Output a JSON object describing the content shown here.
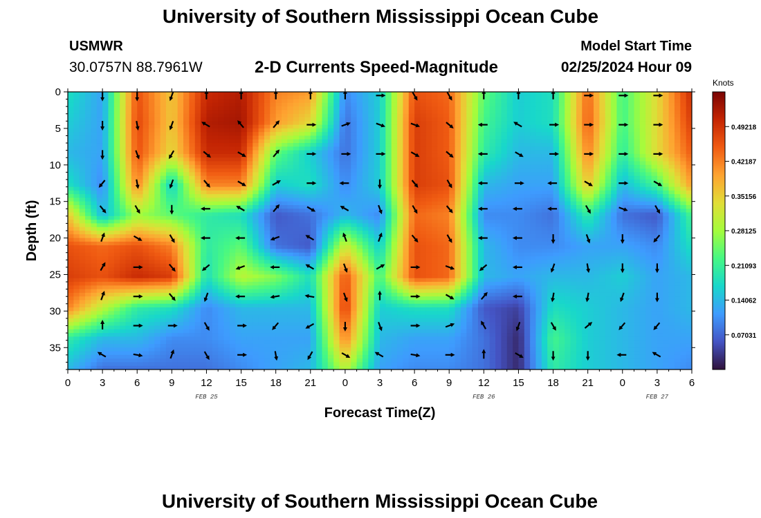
{
  "page": {
    "title": "University of Southern Mississippi Ocean Cube",
    "station": "USMWR",
    "location": "30.0757N  88.7961W",
    "subtitle": "2-D Currents Speed-Magnitude",
    "model_start_label": "Model Start Time",
    "model_start_time": "02/25/2024 Hour 09",
    "second_title": "University of Southern Mississippi Ocean Cube"
  },
  "chart_data": {
    "type": "heatmap",
    "xlabel": "Forecast Time(Z)",
    "ylabel": "Depth (ft)",
    "x_hours": [
      0,
      54
    ],
    "x_tick_labels": [
      "0",
      "3",
      "6",
      "9",
      "12",
      "15",
      "18",
      "21",
      "0",
      "3",
      "6",
      "9",
      "12",
      "15",
      "18",
      "21",
      "0",
      "3",
      "6"
    ],
    "date_labels": [
      {
        "label": "FEB 25",
        "hour": 12
      },
      {
        "label": "FEB 26",
        "hour": 36
      },
      {
        "label": "FEB 27",
        "hour": 51
      }
    ],
    "y_ticks": [
      0,
      5,
      10,
      15,
      20,
      25,
      30,
      35
    ],
    "ylim": [
      0,
      38
    ],
    "colorbar": {
      "unit": "Knots",
      "ticks": [
        "0.07031",
        "0.14062",
        "0.21093",
        "0.28125",
        "0.35156",
        "0.42187",
        "0.49218"
      ],
      "range": [
        0.0,
        0.5625
      ],
      "colors": [
        "#30123b",
        "#4454c4",
        "#3e9bfe",
        "#18d7cb",
        "#46f884",
        "#a4fc3c",
        "#e1dd37",
        "#fea331",
        "#f05b12",
        "#c42503",
        "#7a0403"
      ]
    },
    "speed_grid_note": "knots at sampled times (columns, hours 0-54 step 3) and depths (rows, ft 0-38 step ~4.2)",
    "depths": [
      0,
      4.2,
      8.4,
      12.7,
      16.9,
      21.1,
      25.3,
      29.6,
      33.8,
      38
    ],
    "times": [
      0,
      3,
      6,
      9,
      12,
      15,
      18,
      21,
      24,
      27,
      30,
      33,
      36,
      39,
      42,
      45,
      48,
      51,
      54
    ],
    "speed": [
      [
        0.18,
        0.12,
        0.46,
        0.36,
        0.5,
        0.52,
        0.42,
        0.4,
        0.1,
        0.16,
        0.46,
        0.44,
        0.24,
        0.16,
        0.18,
        0.44,
        0.22,
        0.34,
        0.5
      ],
      [
        0.16,
        0.12,
        0.47,
        0.36,
        0.52,
        0.53,
        0.4,
        0.34,
        0.08,
        0.16,
        0.48,
        0.45,
        0.22,
        0.16,
        0.18,
        0.45,
        0.22,
        0.34,
        0.48
      ],
      [
        0.14,
        0.12,
        0.46,
        0.34,
        0.5,
        0.5,
        0.24,
        0.16,
        0.08,
        0.16,
        0.48,
        0.45,
        0.2,
        0.14,
        0.14,
        0.42,
        0.2,
        0.34,
        0.45
      ],
      [
        0.18,
        0.1,
        0.42,
        0.16,
        0.42,
        0.42,
        0.16,
        0.18,
        0.1,
        0.16,
        0.48,
        0.46,
        0.14,
        0.12,
        0.12,
        0.36,
        0.14,
        0.22,
        0.4
      ],
      [
        0.36,
        0.14,
        0.28,
        0.24,
        0.2,
        0.18,
        0.06,
        0.08,
        0.14,
        0.1,
        0.44,
        0.42,
        0.1,
        0.1,
        0.08,
        0.2,
        0.08,
        0.06,
        0.22
      ],
      [
        0.46,
        0.44,
        0.46,
        0.42,
        0.2,
        0.24,
        0.08,
        0.06,
        0.32,
        0.16,
        0.46,
        0.44,
        0.14,
        0.1,
        0.1,
        0.12,
        0.12,
        0.1,
        0.18
      ],
      [
        0.48,
        0.46,
        0.5,
        0.48,
        0.18,
        0.3,
        0.26,
        0.18,
        0.46,
        0.22,
        0.46,
        0.44,
        0.14,
        0.12,
        0.14,
        0.14,
        0.16,
        0.12,
        0.14
      ],
      [
        0.42,
        0.3,
        0.2,
        0.18,
        0.1,
        0.14,
        0.14,
        0.14,
        0.48,
        0.16,
        0.18,
        0.18,
        0.06,
        0.04,
        0.18,
        0.16,
        0.14,
        0.12,
        0.14
      ],
      [
        0.2,
        0.14,
        0.14,
        0.1,
        0.1,
        0.12,
        0.12,
        0.12,
        0.42,
        0.14,
        0.12,
        0.12,
        0.08,
        0.02,
        0.22,
        0.16,
        0.14,
        0.12,
        0.12
      ],
      [
        0.14,
        0.08,
        0.08,
        0.08,
        0.08,
        0.1,
        0.12,
        0.14,
        0.3,
        0.12,
        0.1,
        0.1,
        0.08,
        0.02,
        0.2,
        0.16,
        0.14,
        0.12,
        0.1
      ]
    ],
    "vector_times": [
      3,
      6,
      9,
      12,
      15,
      18,
      21,
      24,
      27,
      30,
      33,
      36,
      39,
      42,
      45,
      48,
      51
    ],
    "vector_depths": [
      0.5,
      4.5,
      8.5,
      12.5,
      16,
      20,
      24,
      28,
      32,
      36
    ],
    "vector_directions_deg": [
      [
        180,
        180,
        200,
        0,
        0,
        0,
        0,
        0,
        90,
        150,
        150,
        0,
        0,
        0,
        90,
        90,
        90
      ],
      [
        180,
        170,
        200,
        300,
        320,
        40,
        90,
        70,
        110,
        110,
        130,
        270,
        300,
        90,
        90,
        90,
        90
      ],
      [
        180,
        160,
        210,
        130,
        120,
        40,
        90,
        90,
        90,
        120,
        130,
        270,
        120,
        90,
        90,
        90,
        90
      ],
      [
        220,
        170,
        200,
        140,
        120,
        60,
        90,
        270,
        180,
        140,
        150,
        270,
        90,
        270,
        120,
        90,
        120
      ],
      [
        140,
        150,
        180,
        270,
        300,
        40,
        120,
        300,
        160,
        150,
        140,
        270,
        270,
        270,
        150,
        110,
        150
      ],
      [
        20,
        120,
        150,
        270,
        270,
        250,
        300,
        340,
        20,
        140,
        150,
        270,
        270,
        180,
        160,
        180,
        220
      ],
      [
        30,
        90,
        140,
        230,
        250,
        270,
        300,
        160,
        60,
        90,
        110,
        230,
        270,
        200,
        170,
        180,
        180
      ],
      [
        20,
        90,
        140,
        200,
        270,
        260,
        280,
        160,
        0,
        90,
        120,
        40,
        270,
        190,
        190,
        200,
        180
      ],
      [
        0,
        90,
        90,
        150,
        90,
        220,
        240,
        180,
        160,
        90,
        70,
        330,
        200,
        150,
        50,
        220,
        220
      ],
      [
        300,
        100,
        20,
        150,
        90,
        170,
        210,
        120,
        300,
        100,
        90,
        0,
        120,
        180,
        180,
        270,
        300
      ]
    ]
  }
}
